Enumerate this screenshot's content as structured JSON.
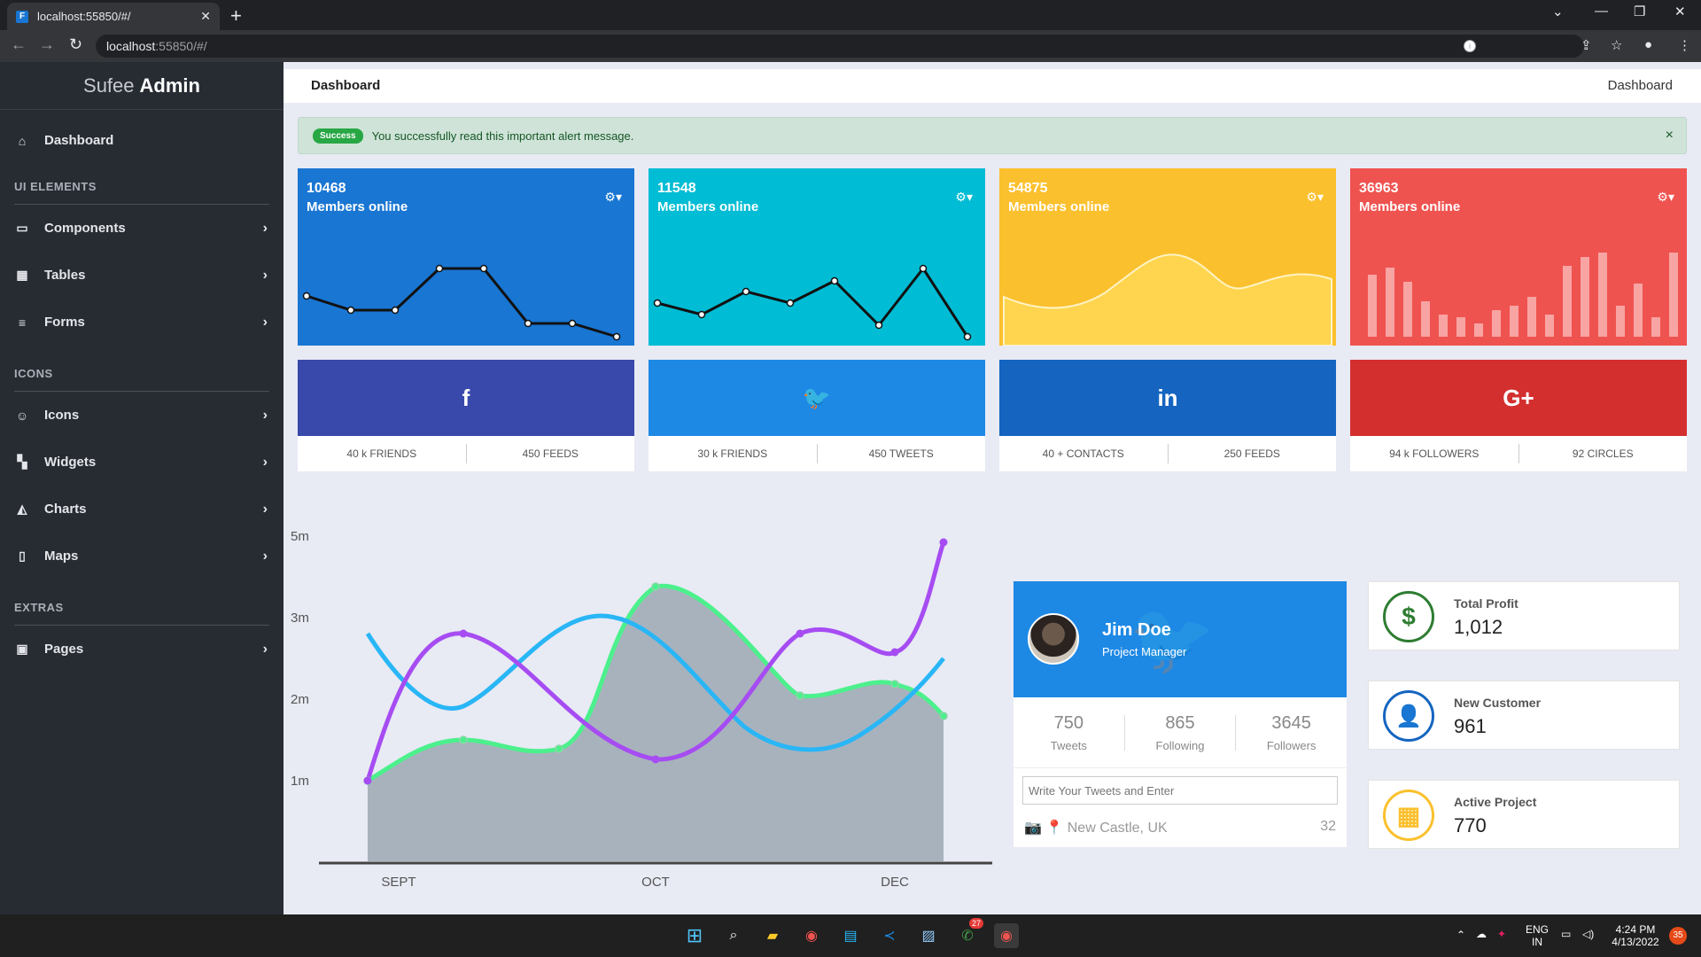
{
  "browser": {
    "tab_title": "localhost:55850/#/",
    "url_host": "localhost",
    "url_rest": ":55850/#/"
  },
  "brand": {
    "light": "Sufee",
    "bold": "Admin"
  },
  "sidebar": {
    "dashboard": "Dashboard",
    "sections": [
      {
        "heading": "UI ELEMENTS",
        "items": [
          "Components",
          "Tables",
          "Forms"
        ]
      },
      {
        "heading": "ICONS",
        "items": [
          "Icons",
          "Widgets",
          "Charts",
          "Maps"
        ]
      },
      {
        "heading": "EXTRAS",
        "items": [
          "Pages"
        ]
      }
    ]
  },
  "topbar": {
    "title": "Dashboard",
    "breadcrumb": "Dashboard"
  },
  "alert": {
    "badge": "Success",
    "message": "You successfully read this important alert message.",
    "close": "×"
  },
  "stats": [
    {
      "number": "10468",
      "label": "Members online",
      "color": "#1976d2"
    },
    {
      "number": "11548",
      "label": "Members online",
      "color": "#00bcd4"
    },
    {
      "number": "54875",
      "label": "Members online",
      "color": "#fbc02d"
    },
    {
      "number": "36963",
      "label": "Members online",
      "color": "#ef5350"
    }
  ],
  "social": [
    {
      "icon": "f",
      "color": "#3949ab",
      "left": "40 k FRIENDS",
      "right": "450 FEEDS"
    },
    {
      "icon": "🐦",
      "color": "#1e88e5",
      "left": "30 k FRIENDS",
      "right": "450 TWEETS"
    },
    {
      "icon": "in",
      "color": "#1565c0",
      "left": "40 + CONTACTS",
      "right": "250 FEEDS"
    },
    {
      "icon": "G+",
      "color": "#d32f2f",
      "left": "94 k FOLLOWERS",
      "right": "92 CIRCLES"
    }
  ],
  "chart_data": {
    "type": "line",
    "y_tick_labels": [
      "5m",
      "3m",
      "2m",
      "1m"
    ],
    "x_tick_labels": [
      "SEPT",
      "OCT",
      "DEC"
    ]
  },
  "twitter_card": {
    "name": "Jim Doe",
    "role": "Project Manager",
    "stats": [
      {
        "value": "750",
        "label": "Tweets"
      },
      {
        "value": "865",
        "label": "Following"
      },
      {
        "value": "3645",
        "label": "Followers"
      }
    ],
    "input_placeholder": "Write Your Tweets and Enter",
    "location": "New Castle, UK",
    "count": "32"
  },
  "info_boxes": [
    {
      "title": "Total Profit",
      "value": "1,012",
      "icon": "$",
      "color": "#2e7d32"
    },
    {
      "title": "New Customer",
      "value": "961",
      "icon": "user",
      "color": "#1565c0"
    },
    {
      "title": "Active Project",
      "value": "770",
      "icon": "grid",
      "color": "#fbc02d"
    }
  ],
  "taskbar": {
    "lang": "ENG",
    "region": "IN",
    "time": "4:24 PM",
    "date": "4/13/2022",
    "notif": "35",
    "whatsapp_badge": "27"
  }
}
